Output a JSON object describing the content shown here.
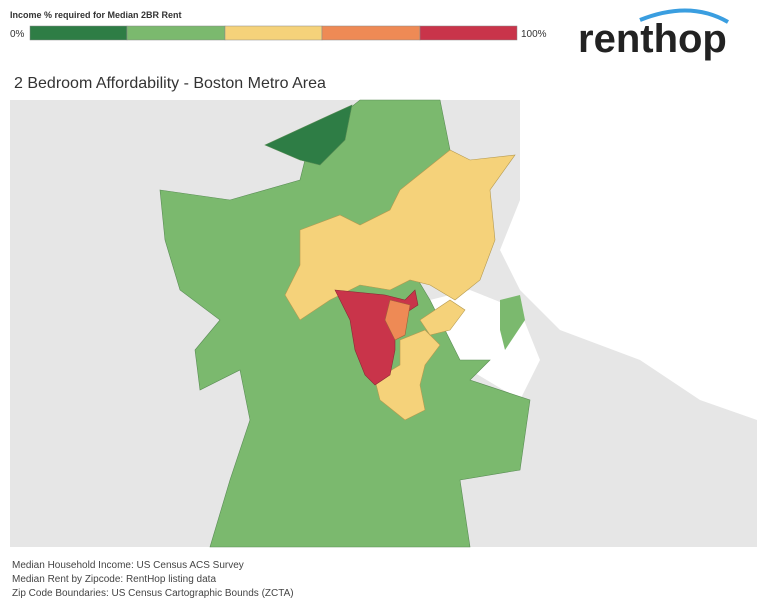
{
  "legend": {
    "title": "Income % required for Median 2BR Rent",
    "min_label": "0%",
    "max_label": "100%"
  },
  "logo": "renthop",
  "title": "2 Bedroom Affordability - Boston Metro Area",
  "sources": [
    "Median Household Income: US Census ACS Survey",
    "Median Rent by Zipcode: RentHop listing data",
    "Zip Code Boundaries: US Census Cartographic Bounds (ZCTA)"
  ]
}
